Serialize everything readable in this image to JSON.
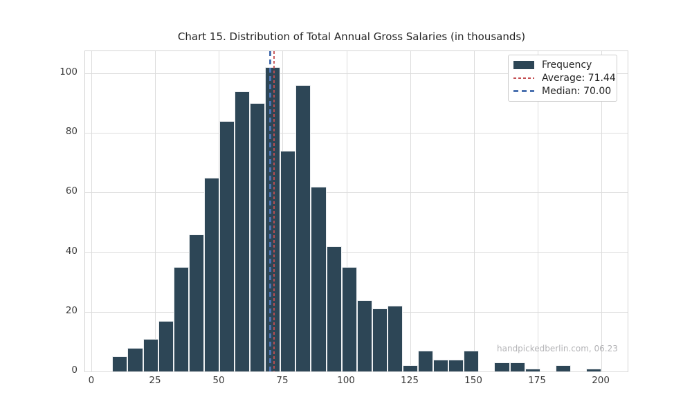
{
  "title": "Chart 15. Distribution of Total Annual Gross Salaries (in thousands)",
  "watermark": "handpickedberlin.com, 06.23",
  "legend": {
    "frequency_label": "Frequency",
    "average_label": "Average: 71.44",
    "median_label": "Median: 70.00"
  },
  "colors": {
    "bar": "#2d4656",
    "average_line": "#c44e52",
    "median_line": "#4c72b0",
    "grid": "#dcdcdc",
    "spine": "#d4d4d4",
    "watermark": "#b3b3b6",
    "background": "#ffffff"
  },
  "chart_data": {
    "type": "bar",
    "subtype": "histogram",
    "title": "Chart 15. Distribution of Total Annual Gross Salaries (in thousands)",
    "xlabel": "",
    "ylabel": "",
    "bin_start": 8,
    "bin_width": 6,
    "bin_edges": [
      8,
      14,
      20,
      26,
      32,
      38,
      44,
      50,
      56,
      62,
      68,
      74,
      80,
      86,
      92,
      98,
      104,
      110,
      116,
      122,
      128,
      134,
      140,
      146,
      152,
      158,
      164,
      170,
      176,
      182,
      188,
      194,
      200
    ],
    "frequencies": [
      5,
      8,
      11,
      17,
      35,
      46,
      65,
      84,
      94,
      90,
      102,
      74,
      96,
      62,
      42,
      35,
      24,
      21,
      22,
      2,
      7,
      4,
      4,
      7,
      0,
      3,
      3,
      1,
      0,
      2,
      0,
      1
    ],
    "average": 71.44,
    "median": 70.0,
    "xticks": [
      0,
      25,
      50,
      75,
      100,
      125,
      150,
      175,
      200
    ],
    "yticks": [
      0,
      20,
      40,
      60,
      80,
      100
    ],
    "xlim": [
      -2.7,
      210.3
    ],
    "ylim": [
      0,
      107.4
    ],
    "grid": true,
    "legend_position": "upper right",
    "series_name": "Frequency"
  }
}
